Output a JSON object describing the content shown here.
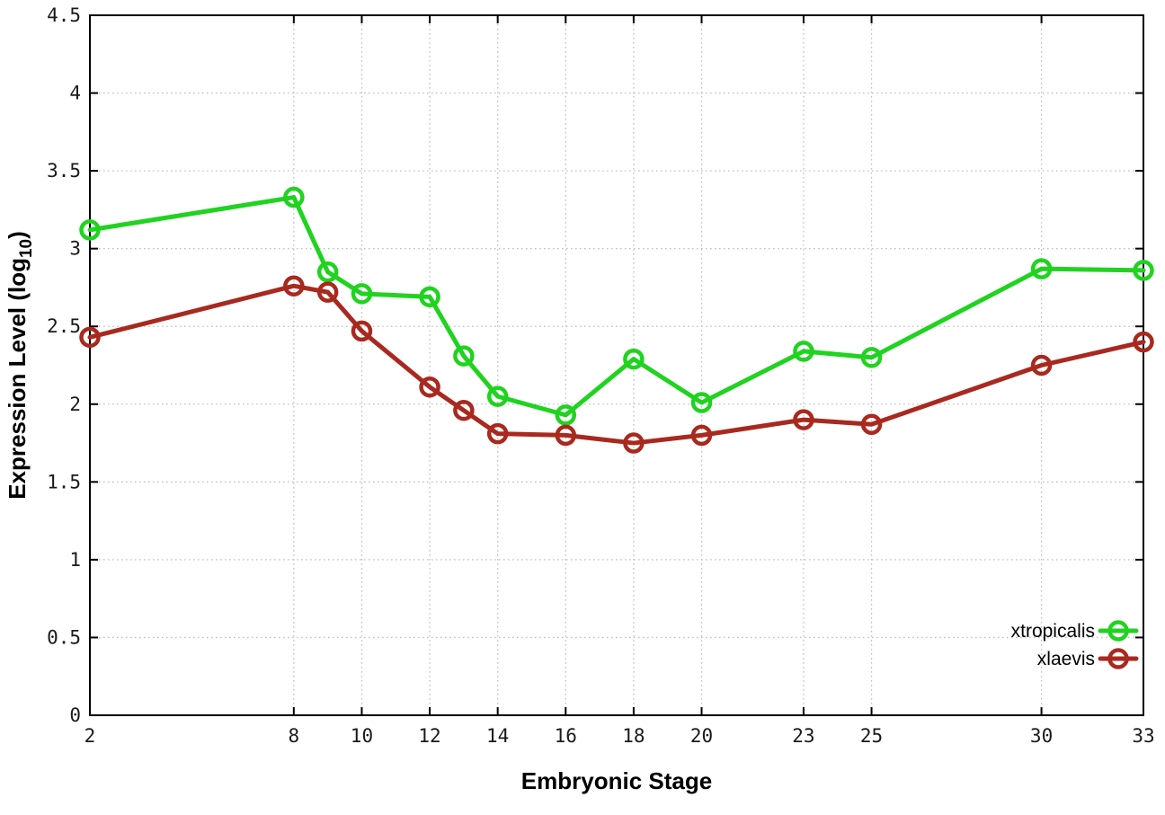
{
  "figure": {
    "background": "#ffffff"
  },
  "chart_data": {
    "type": "line",
    "title": "",
    "xlabel": "Embryonic Stage",
    "ylabel_pre": "Expression Level (log",
    "ylabel_sub": "10",
    "ylabel_post": ")",
    "xlim": [
      2,
      33
    ],
    "ylim": [
      0,
      4.5
    ],
    "x_ticks": [
      2,
      8,
      10,
      12,
      14,
      16,
      18,
      20,
      23,
      25,
      30,
      33
    ],
    "x_tick_labels": [
      "2",
      "8",
      "10",
      "12",
      "14",
      "16",
      "18",
      "20",
      "23",
      "25",
      "30",
      "33"
    ],
    "y_ticks": [
      0,
      0.5,
      1,
      1.5,
      2,
      2.5,
      3,
      3.5,
      4,
      4.5
    ],
    "y_tick_labels": [
      "0",
      "0.5",
      "1",
      "1.5",
      "2",
      "2.5",
      "3",
      "3.5",
      "4",
      "4.5"
    ],
    "grid": true,
    "grid_color": "#c0c0c0",
    "axis_color": "#000000",
    "legend_position": "bottom-right",
    "x": [
      2,
      8,
      9,
      10,
      12,
      13,
      14,
      16,
      18,
      20,
      23,
      25,
      30,
      33
    ],
    "series": [
      {
        "name": "xtropicalis",
        "color": "#1fd31f",
        "marker": "open-circle",
        "values": [
          3.12,
          3.33,
          2.85,
          2.71,
          2.69,
          2.31,
          2.05,
          1.93,
          2.29,
          2.01,
          2.34,
          2.3,
          2.87,
          2.86
        ]
      },
      {
        "name": "xlaevis",
        "color": "#a9291f",
        "marker": "open-circle",
        "values": [
          2.43,
          2.76,
          2.72,
          2.47,
          2.11,
          1.96,
          1.81,
          1.8,
          1.75,
          1.8,
          1.9,
          1.87,
          2.25,
          2.4
        ]
      }
    ]
  }
}
